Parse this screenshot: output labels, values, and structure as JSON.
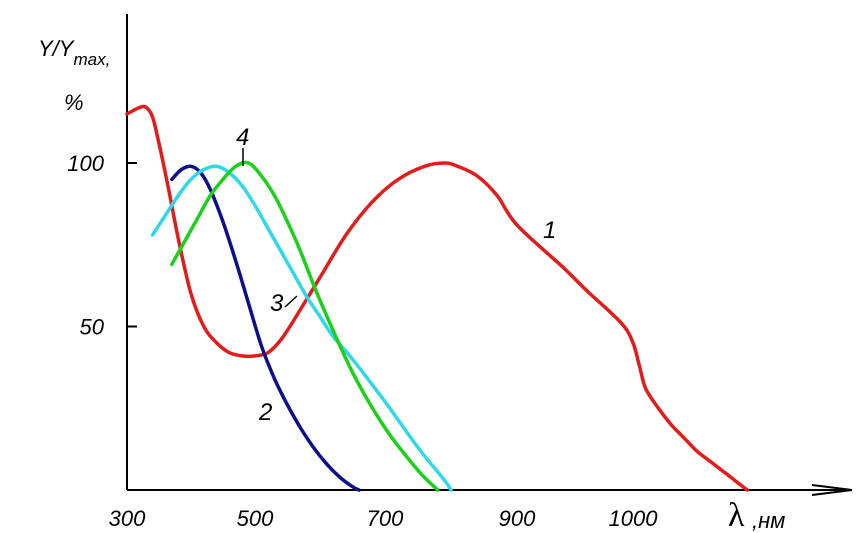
{
  "chart_data": {
    "type": "line",
    "title": "",
    "ylabel": {
      "line1": "Y/Y",
      "sub": "max,",
      "line2": "%"
    },
    "xlabel": {
      "symbol": "λ",
      "unit": ",нм"
    },
    "xlim": [
      300,
      1200
    ],
    "ylim": [
      0,
      121
    ],
    "x_ticks": [
      {
        "value": 300,
        "label": "300"
      },
      {
        "value": 500,
        "label": "500"
      },
      {
        "value": 700,
        "label": "700"
      },
      {
        "value": 900,
        "label": "900"
      },
      {
        "value": 1000,
        "label": "1000"
      }
    ],
    "y_ticks": [
      {
        "value": 50,
        "label": "50"
      },
      {
        "value": 100,
        "label": "100"
      }
    ],
    "grid": false,
    "series": [
      {
        "label": "1",
        "color": "#e31b1b",
        "x": [
          300,
          320,
          330,
          340,
          350,
          365,
          380,
          400,
          420,
          440,
          460,
          480,
          500,
          520,
          540,
          560,
          600,
          640,
          680,
          720,
          760,
          790,
          810,
          840,
          870,
          900,
          940,
          960,
          990,
          1000,
          1010,
          1020,
          1040,
          1060,
          1080,
          1100,
          1120,
          1140,
          1160,
          1180
        ],
        "y": [
          115,
          117,
          117,
          114,
          106,
          92,
          77,
          60,
          50,
          45,
          42,
          41,
          41,
          42,
          46,
          52,
          65,
          78,
          88,
          95,
          99,
          100,
          99,
          96,
          90,
          81,
          68,
          61,
          51,
          45,
          38,
          31,
          25,
          20,
          16,
          12,
          9,
          6,
          3,
          0
        ]
      },
      {
        "label": "2",
        "color": "#0a0f8c",
        "x": [
          370,
          385,
          400,
          415,
          430,
          450,
          470,
          490,
          510,
          530,
          550,
          570,
          590,
          610,
          630,
          650,
          660
        ],
        "y": [
          95,
          98,
          99,
          97,
          92,
          82,
          70,
          57,
          44,
          34,
          26,
          19,
          13,
          8,
          4,
          1,
          0
        ]
      },
      {
        "label": "3",
        "color": "#2ed8e8",
        "x": [
          340,
          360,
          380,
          400,
          420,
          440,
          460,
          480,
          500,
          520,
          540,
          560,
          580,
          600,
          620,
          650,
          700,
          750,
          790,
          800
        ],
        "y": [
          78,
          84,
          90,
          95,
          98,
          99,
          97,
          93,
          87,
          80,
          73,
          66,
          59,
          53,
          47,
          40,
          27,
          13,
          3,
          0
        ]
      },
      {
        "label": "4",
        "color": "#1ad11a",
        "x": [
          370,
          390,
          410,
          430,
          450,
          470,
          490,
          510,
          530,
          550,
          570,
          600,
          650,
          700,
          750,
          780
        ],
        "y": [
          69,
          76,
          83,
          90,
          95,
          99,
          100,
          96,
          90,
          82,
          73,
          58,
          36,
          19,
          6,
          0
        ]
      }
    ]
  }
}
